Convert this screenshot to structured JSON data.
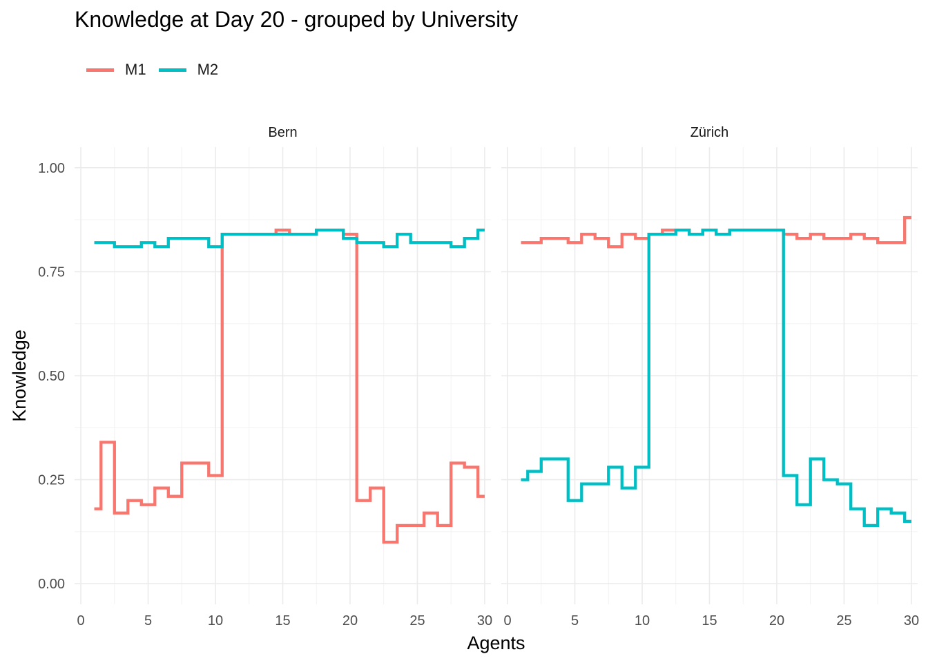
{
  "chart_data": {
    "type": "line",
    "step": true,
    "title": "Knowledge at Day 20 - grouped by University",
    "xlabel": "Agents",
    "ylabel": "Knowledge",
    "xlim": [
      0,
      30
    ],
    "ylim": [
      0,
      1
    ],
    "x_ticks": [
      "0",
      "5",
      "10",
      "15",
      "20",
      "25",
      "30"
    ],
    "y_ticks": [
      "0.00",
      "0.25",
      "0.50",
      "0.75",
      "1.00"
    ],
    "grid": true,
    "legend_position": "top-left",
    "series_colors": {
      "M1": "#F8766D",
      "M2": "#00BFC4"
    },
    "legend": [
      {
        "name": "M1",
        "color": "#F8766D"
      },
      {
        "name": "M2",
        "color": "#00BFC4"
      }
    ],
    "facets": [
      {
        "label": "Bern",
        "series": [
          {
            "name": "M1",
            "values": [
              0.18,
              0.34,
              0.17,
              0.2,
              0.19,
              0.23,
              0.21,
              0.29,
              0.29,
              0.26,
              0.84,
              0.84,
              0.84,
              0.84,
              0.85,
              0.84,
              0.84,
              0.85,
              0.85,
              0.84,
              0.2,
              0.23,
              0.1,
              0.14,
              0.14,
              0.17,
              0.14,
              0.29,
              0.28,
              0.21
            ]
          },
          {
            "name": "M2",
            "values": [
              0.82,
              0.82,
              0.81,
              0.81,
              0.82,
              0.81,
              0.83,
              0.83,
              0.83,
              0.81,
              0.84,
              0.84,
              0.84,
              0.84,
              0.84,
              0.84,
              0.84,
              0.85,
              0.85,
              0.83,
              0.82,
              0.82,
              0.81,
              0.84,
              0.82,
              0.82,
              0.82,
              0.81,
              0.83,
              0.85
            ]
          }
        ]
      },
      {
        "label": "Zürich",
        "series": [
          {
            "name": "M1",
            "values": [
              0.82,
              0.82,
              0.83,
              0.83,
              0.82,
              0.84,
              0.83,
              0.81,
              0.84,
              0.83,
              0.84,
              0.85,
              0.85,
              0.84,
              0.85,
              0.84,
              0.85,
              0.85,
              0.85,
              0.85,
              0.84,
              0.83,
              0.84,
              0.83,
              0.83,
              0.84,
              0.83,
              0.82,
              0.82,
              0.88
            ]
          },
          {
            "name": "M2",
            "values": [
              0.25,
              0.27,
              0.3,
              0.3,
              0.2,
              0.24,
              0.24,
              0.28,
              0.23,
              0.28,
              0.84,
              0.84,
              0.85,
              0.84,
              0.85,
              0.84,
              0.85,
              0.85,
              0.85,
              0.85,
              0.26,
              0.19,
              0.3,
              0.25,
              0.24,
              0.18,
              0.14,
              0.18,
              0.17,
              0.15
            ]
          }
        ]
      }
    ]
  }
}
